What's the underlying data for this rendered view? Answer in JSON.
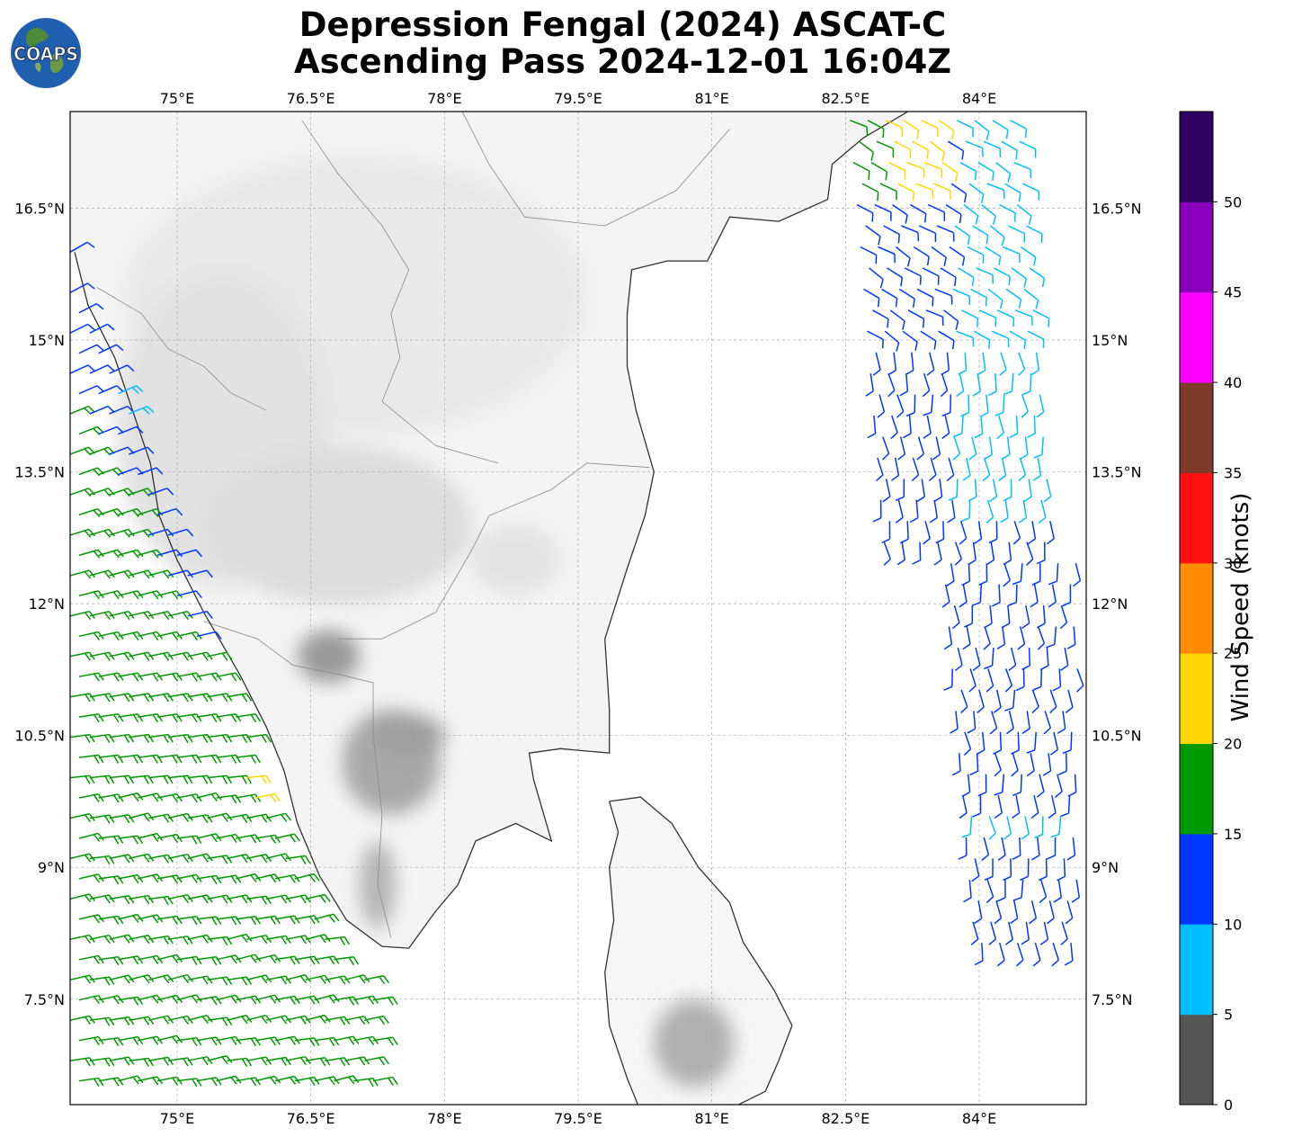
{
  "header": {
    "title_line1": "Depression Fengal (2024) ASCAT-C",
    "title_line2": "Ascending Pass 2024-12-01 16:04Z",
    "logo_text": "COAPS"
  },
  "map": {
    "lon_range": [
      73.8,
      85.2
    ],
    "lat_range": [
      6.3,
      17.6
    ],
    "lon_ticks": [
      {
        "v": 75.0,
        "label": "75°E"
      },
      {
        "v": 76.5,
        "label": "76.5°E"
      },
      {
        "v": 78.0,
        "label": "78°E"
      },
      {
        "v": 79.5,
        "label": "79.5°E"
      },
      {
        "v": 81.0,
        "label": "81°E"
      },
      {
        "v": 82.5,
        "label": "82.5°E"
      },
      {
        "v": 84.0,
        "label": "84°E"
      }
    ],
    "lat_ticks": [
      {
        "v": 7.5,
        "label": "7.5°N"
      },
      {
        "v": 9.0,
        "label": "9°N"
      },
      {
        "v": 10.5,
        "label": "10.5°N"
      },
      {
        "v": 12.0,
        "label": "12°N"
      },
      {
        "v": 13.5,
        "label": "13.5°N"
      },
      {
        "v": 15.0,
        "label": "15°N"
      },
      {
        "v": 16.5,
        "label": "16.5°N"
      }
    ],
    "grid": true,
    "coastline_india": [
      [
        73.85,
        16.0
      ],
      [
        74.0,
        15.4
      ],
      [
        74.3,
        14.8
      ],
      [
        74.5,
        14.2
      ],
      [
        74.7,
        13.6
      ],
      [
        74.8,
        13.0
      ],
      [
        75.0,
        12.5
      ],
      [
        75.3,
        11.9
      ],
      [
        75.7,
        11.2
      ],
      [
        76.0,
        10.6
      ],
      [
        76.2,
        10.1
      ],
      [
        76.35,
        9.5
      ],
      [
        76.6,
        8.9
      ],
      [
        76.9,
        8.4
      ],
      [
        77.3,
        8.1
      ],
      [
        77.6,
        8.08
      ],
      [
        77.9,
        8.5
      ],
      [
        78.15,
        8.8
      ],
      [
        78.35,
        9.3
      ],
      [
        78.8,
        9.5
      ],
      [
        79.2,
        9.3
      ],
      [
        79.0,
        10.0
      ],
      [
        78.95,
        10.3
      ],
      [
        79.3,
        10.35
      ],
      [
        79.85,
        10.3
      ],
      [
        79.85,
        10.8
      ],
      [
        79.8,
        11.6
      ],
      [
        80.05,
        12.4
      ],
      [
        80.25,
        13.0
      ],
      [
        80.35,
        13.5
      ],
      [
        80.15,
        14.2
      ],
      [
        80.05,
        14.7
      ],
      [
        80.05,
        15.3
      ],
      [
        80.1,
        15.8
      ],
      [
        80.5,
        15.9
      ],
      [
        80.95,
        15.9
      ],
      [
        81.2,
        16.4
      ],
      [
        81.75,
        16.35
      ],
      [
        82.3,
        16.6
      ],
      [
        82.35,
        17.0
      ],
      [
        82.7,
        17.3
      ],
      [
        83.2,
        17.6
      ]
    ],
    "coastline_srilanka": [
      [
        79.85,
        9.75
      ],
      [
        80.2,
        9.8
      ],
      [
        80.55,
        9.5
      ],
      [
        80.85,
        9.0
      ],
      [
        81.2,
        8.6
      ],
      [
        81.35,
        8.15
      ],
      [
        81.7,
        7.6
      ],
      [
        81.9,
        7.2
      ],
      [
        81.75,
        6.8
      ],
      [
        81.6,
        6.45
      ],
      [
        81.2,
        6.25
      ],
      [
        80.6,
        6.0
      ],
      [
        80.25,
        6.1
      ],
      [
        80.05,
        6.6
      ],
      [
        79.85,
        7.2
      ],
      [
        79.8,
        7.8
      ],
      [
        79.9,
        8.4
      ],
      [
        79.85,
        9.0
      ],
      [
        79.95,
        9.4
      ],
      [
        79.85,
        9.75
      ]
    ],
    "borders": [
      [
        [
          74.1,
          15.6
        ],
        [
          74.6,
          15.3
        ],
        [
          74.9,
          14.9
        ],
        [
          75.3,
          14.7
        ],
        [
          75.6,
          14.4
        ],
        [
          76.0,
          14.2
        ]
      ],
      [
        [
          75.3,
          11.8
        ],
        [
          75.9,
          11.6
        ],
        [
          76.3,
          11.3
        ],
        [
          76.8,
          11.2
        ],
        [
          77.2,
          11.1
        ],
        [
          77.2,
          10.5
        ],
        [
          77.3,
          9.6
        ],
        [
          77.25,
          8.8
        ],
        [
          77.4,
          8.2
        ]
      ],
      [
        [
          76.8,
          11.6
        ],
        [
          77.3,
          11.6
        ],
        [
          77.9,
          11.9
        ],
        [
          78.3,
          12.6
        ],
        [
          78.5,
          13.0
        ],
        [
          79.2,
          13.3
        ],
        [
          79.6,
          13.6
        ],
        [
          80.3,
          13.55
        ]
      ],
      [
        [
          76.4,
          17.5
        ],
        [
          76.8,
          16.9
        ],
        [
          77.3,
          16.3
        ],
        [
          77.6,
          15.8
        ],
        [
          77.4,
          15.3
        ],
        [
          77.5,
          14.8
        ],
        [
          77.3,
          14.3
        ],
        [
          77.9,
          13.8
        ],
        [
          78.6,
          13.6
        ]
      ],
      [
        [
          78.2,
          17.6
        ],
        [
          78.5,
          17.0
        ],
        [
          78.9,
          16.4
        ],
        [
          79.8,
          16.3
        ],
        [
          80.6,
          16.7
        ],
        [
          81.2,
          17.4
        ]
      ]
    ],
    "terrain": [
      {
        "lon": 77.0,
        "lat": 15.5,
        "rx": 2.6,
        "ry": 1.6,
        "shade": "#e9e9e9"
      },
      {
        "lon": 75.5,
        "lat": 14.0,
        "rx": 1.2,
        "ry": 1.8,
        "shade": "#e2e2e2"
      },
      {
        "lon": 76.8,
        "lat": 12.9,
        "rx": 1.5,
        "ry": 0.9,
        "shade": "#dcdcdc"
      },
      {
        "lon": 76.7,
        "lat": 11.4,
        "rx": 0.35,
        "ry": 0.3,
        "shade": "#9a9a9a"
      },
      {
        "lon": 77.4,
        "lat": 10.2,
        "rx": 0.55,
        "ry": 0.6,
        "shade": "#a9a9a9"
      },
      {
        "lon": 77.6,
        "lat": 10.5,
        "rx": 0.4,
        "ry": 0.25,
        "shade": "#9f9f9f"
      },
      {
        "lon": 77.25,
        "lat": 8.8,
        "rx": 0.2,
        "ry": 0.5,
        "shade": "#b5b5b5"
      },
      {
        "lon": 80.8,
        "lat": 7.0,
        "rx": 0.45,
        "ry": 0.5,
        "shade": "#b0b0b0"
      },
      {
        "lon": 78.8,
        "lat": 12.5,
        "rx": 0.5,
        "ry": 0.4,
        "shade": "#e3e3e3"
      }
    ],
    "wind_colors": [
      "#555555",
      "#00bfff",
      "#0037ff",
      "#009900",
      "#ffd700",
      "#ff8c00",
      "#ff1111",
      "#7f3b2a",
      "#ff00ff",
      "#8800bb",
      "#300060"
    ]
  },
  "colorbar": {
    "label": "Wind Speed (knots)",
    "ticks": [
      "0",
      "5",
      "10",
      "15",
      "20",
      "25",
      "30",
      "35",
      "40",
      "45",
      "50"
    ],
    "colors": [
      "#555555",
      "#00bfff",
      "#0037ff",
      "#009900",
      "#ffd700",
      "#ff8c00",
      "#ff1111",
      "#7f3b2a",
      "#ff00ff",
      "#8800bb",
      "#300060"
    ]
  }
}
